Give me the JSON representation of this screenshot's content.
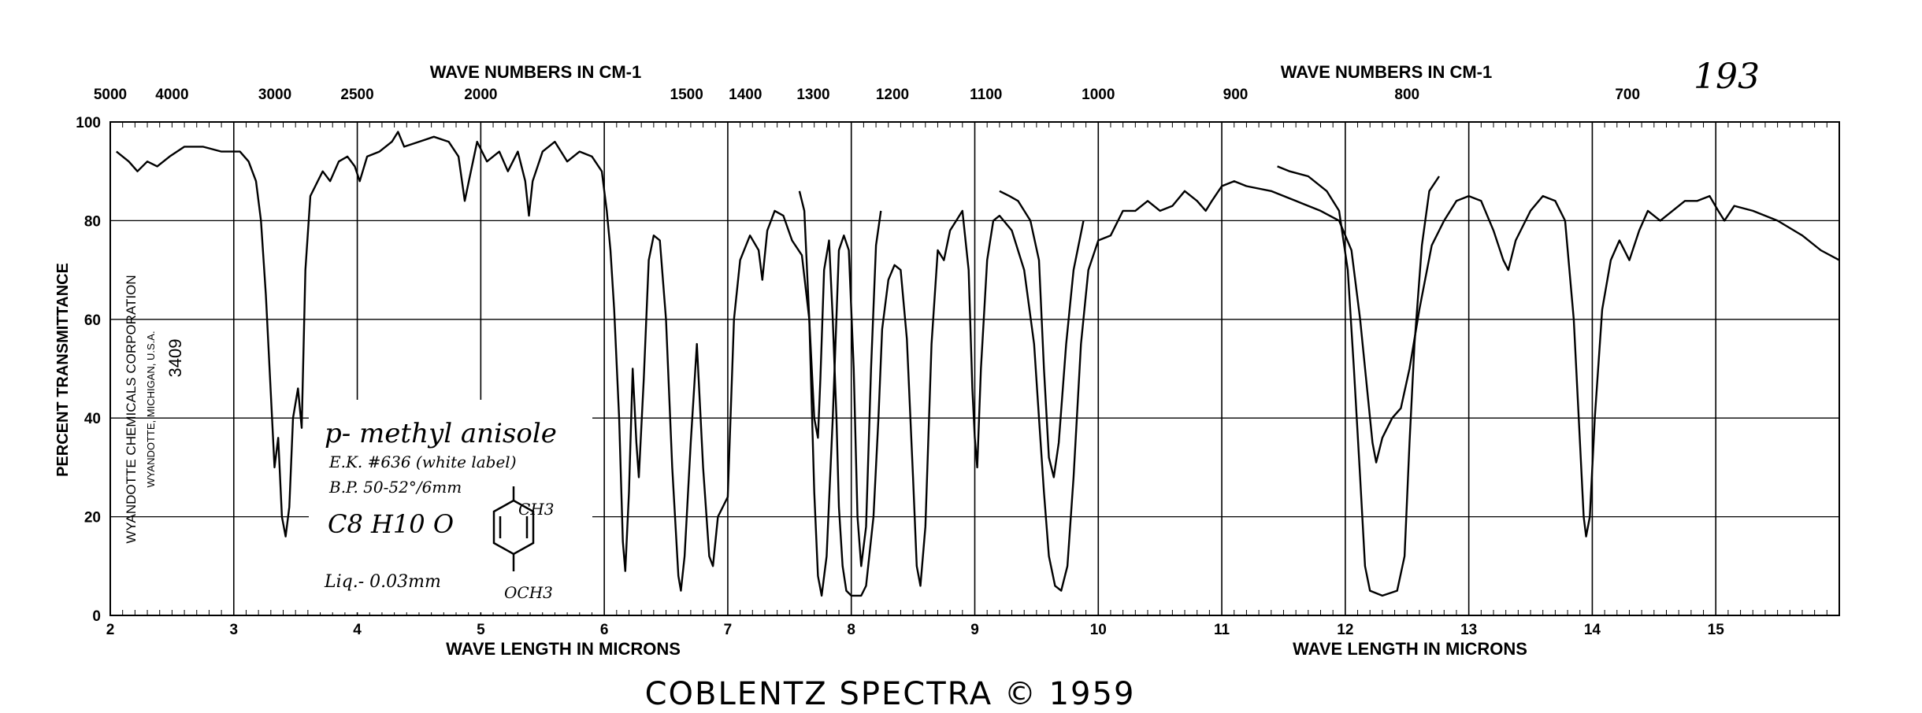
{
  "page_number": "193",
  "caption": "COBLENTZ SPECTRA © 1959",
  "side_labels": {
    "company": "WYANDOTTE CHEMICALS CORPORATION",
    "location": "WYANDOTTE, MICHIGAN, U.S.A.",
    "number": "3409"
  },
  "sample": {
    "name": "p- methyl anisole",
    "ek": "E.K. #636 (white label)",
    "bp": "B.P. 50-52°/6mm",
    "formula": "C8 H10 O",
    "cell": "Liq.- 0.03mm",
    "structure_top": "CH3",
    "structure_bottom": "OCH3"
  },
  "chart_data": {
    "type": "line",
    "xlabel": "WAVE LENGTH IN MICRONS",
    "xlabel_right": "WAVE LENGTH IN MICRONS",
    "ylabel": "PERCENT TRANSMITTANCE",
    "top_label_left": "WAVE NUMBERS IN CM-1",
    "top_label_right": "WAVE NUMBERS IN CM-1",
    "xlim": [
      2,
      16
    ],
    "ylim": [
      0,
      100
    ],
    "x_ticks": [
      2,
      3,
      4,
      5,
      6,
      7,
      8,
      9,
      10,
      11,
      12,
      13,
      14,
      15
    ],
    "y_ticks": [
      0,
      20,
      40,
      60,
      80,
      100
    ],
    "top_ticks": [
      "5000",
      "4000",
      "3000",
      "2500",
      "2000",
      "1500",
      "1400",
      "1300",
      "1200",
      "1100",
      "1000",
      "900",
      "800",
      "700"
    ],
    "grid": true,
    "series": [
      {
        "points": [
          [
            2.05,
            94
          ],
          [
            2.15,
            92
          ],
          [
            2.22,
            90
          ],
          [
            2.3,
            92
          ],
          [
            2.38,
            91
          ],
          [
            2.48,
            93
          ],
          [
            2.6,
            95
          ],
          [
            2.75,
            95
          ],
          [
            2.9,
            94
          ],
          [
            3.05,
            94
          ],
          [
            3.12,
            92
          ],
          [
            3.18,
            88
          ],
          [
            3.22,
            80
          ],
          [
            3.26,
            65
          ],
          [
            3.3,
            45
          ],
          [
            3.33,
            30
          ],
          [
            3.36,
            36
          ],
          [
            3.39,
            20
          ],
          [
            3.42,
            16
          ],
          [
            3.45,
            22
          ],
          [
            3.48,
            40
          ],
          [
            3.52,
            46
          ],
          [
            3.55,
            38
          ],
          [
            3.58,
            70
          ],
          [
            3.62,
            85
          ],
          [
            3.68,
            88
          ],
          [
            3.72,
            90
          ],
          [
            3.78,
            88
          ],
          [
            3.85,
            92
          ],
          [
            3.92,
            93
          ],
          [
            3.98,
            91
          ],
          [
            4.02,
            88
          ],
          [
            4.08,
            93
          ],
          [
            4.18,
            94
          ],
          [
            4.28,
            96
          ],
          [
            4.33,
            98
          ],
          [
            4.38,
            95
          ],
          [
            4.5,
            96
          ],
          [
            4.62,
            97
          ],
          [
            4.74,
            96
          ],
          [
            4.82,
            93
          ],
          [
            4.87,
            84
          ],
          [
            4.92,
            90
          ],
          [
            4.97,
            96
          ],
          [
            5.05,
            92
          ],
          [
            5.15,
            94
          ],
          [
            5.22,
            90
          ],
          [
            5.3,
            94
          ],
          [
            5.36,
            88
          ],
          [
            5.39,
            81
          ],
          [
            5.42,
            88
          ],
          [
            5.5,
            94
          ],
          [
            5.6,
            96
          ],
          [
            5.7,
            92
          ],
          [
            5.8,
            94
          ],
          [
            5.9,
            93
          ],
          [
            5.98,
            90
          ],
          [
            6.02,
            82
          ],
          [
            6.05,
            74
          ],
          [
            6.08,
            62
          ],
          [
            6.12,
            40
          ],
          [
            6.15,
            15
          ],
          [
            6.17,
            9
          ],
          [
            6.2,
            25
          ],
          [
            6.23,
            50
          ],
          [
            6.26,
            35
          ],
          [
            6.28,
            28
          ],
          [
            6.32,
            48
          ],
          [
            6.36,
            72
          ],
          [
            6.4,
            77
          ],
          [
            6.45,
            76
          ],
          [
            6.5,
            60
          ],
          [
            6.55,
            30
          ],
          [
            6.6,
            8
          ],
          [
            6.62,
            5
          ],
          [
            6.65,
            12
          ],
          [
            6.7,
            35
          ],
          [
            6.75,
            55
          ],
          [
            6.8,
            30
          ],
          [
            6.85,
            12
          ],
          [
            6.88,
            10
          ],
          [
            6.92,
            20
          ],
          [
            7.0,
            24
          ],
          [
            7.05,
            60
          ],
          [
            7.1,
            72
          ],
          [
            7.18,
            77
          ],
          [
            7.25,
            74
          ],
          [
            7.28,
            68
          ],
          [
            7.32,
            78
          ],
          [
            7.38,
            82
          ],
          [
            7.45,
            81
          ],
          [
            7.52,
            76
          ],
          [
            7.6,
            73
          ],
          [
            7.66,
            60
          ],
          [
            7.7,
            40
          ],
          [
            7.73,
            36
          ],
          [
            7.75,
            48
          ],
          [
            7.78,
            70
          ],
          [
            7.82,
            76
          ],
          [
            7.85,
            60
          ],
          [
            7.88,
            40
          ],
          [
            7.9,
            22
          ],
          [
            7.93,
            10
          ],
          [
            7.96,
            5
          ],
          [
            8.0,
            4
          ],
          [
            8.08,
            4
          ],
          [
            8.12,
            6
          ],
          [
            8.18,
            20
          ],
          [
            8.22,
            40
          ],
          [
            8.25,
            58
          ],
          [
            8.3,
            68
          ],
          [
            8.35,
            71
          ],
          [
            8.4,
            70
          ],
          [
            8.45,
            56
          ],
          [
            8.5,
            28
          ],
          [
            8.53,
            10
          ],
          [
            8.56,
            6
          ],
          [
            8.6,
            18
          ],
          [
            8.65,
            55
          ],
          [
            8.7,
            74
          ],
          [
            8.75,
            72
          ],
          [
            8.8,
            78
          ],
          [
            8.85,
            80
          ],
          [
            8.9,
            82
          ],
          [
            8.95,
            70
          ],
          [
            8.98,
            46
          ],
          [
            9.0,
            36
          ],
          [
            9.02,
            30
          ],
          [
            9.05,
            50
          ],
          [
            9.1,
            72
          ],
          [
            9.15,
            80
          ],
          [
            9.2,
            81
          ],
          [
            9.3,
            78
          ],
          [
            9.4,
            70
          ],
          [
            9.48,
            55
          ],
          [
            9.52,
            40
          ],
          [
            9.56,
            25
          ],
          [
            9.6,
            12
          ],
          [
            9.65,
            6
          ],
          [
            9.7,
            5
          ],
          [
            9.75,
            10
          ],
          [
            9.8,
            28
          ],
          [
            9.86,
            55
          ],
          [
            9.92,
            70
          ],
          [
            10.0,
            76
          ],
          [
            10.1,
            77
          ],
          [
            10.2,
            82
          ],
          [
            10.3,
            82
          ],
          [
            10.4,
            84
          ],
          [
            10.5,
            82
          ],
          [
            10.6,
            83
          ],
          [
            10.7,
            86
          ],
          [
            10.8,
            84
          ],
          [
            10.87,
            82
          ],
          [
            10.92,
            84
          ],
          [
            11.0,
            87
          ],
          [
            11.1,
            88
          ],
          [
            11.2,
            87
          ],
          [
            11.4,
            86
          ],
          [
            11.6,
            84
          ],
          [
            11.8,
            82
          ],
          [
            11.95,
            80
          ],
          [
            12.05,
            74
          ],
          [
            12.12,
            60
          ],
          [
            12.18,
            45
          ],
          [
            12.22,
            35
          ],
          [
            12.25,
            31
          ],
          [
            12.3,
            36
          ],
          [
            12.38,
            40
          ],
          [
            12.45,
            42
          ],
          [
            12.52,
            50
          ],
          [
            12.6,
            62
          ],
          [
            12.7,
            75
          ],
          [
            12.8,
            80
          ],
          [
            12.9,
            84
          ],
          [
            13.0,
            85
          ],
          [
            13.1,
            84
          ],
          [
            13.2,
            78
          ],
          [
            13.28,
            72
          ],
          [
            13.32,
            70
          ],
          [
            13.38,
            76
          ],
          [
            13.5,
            82
          ],
          [
            13.6,
            85
          ],
          [
            13.7,
            84
          ],
          [
            13.78,
            80
          ],
          [
            13.85,
            60
          ],
          [
            13.9,
            35
          ],
          [
            13.93,
            20
          ],
          [
            13.95,
            16
          ],
          [
            13.98,
            20
          ],
          [
            14.02,
            40
          ],
          [
            14.08,
            62
          ],
          [
            14.15,
            72
          ],
          [
            14.22,
            76
          ],
          [
            14.3,
            72
          ],
          [
            14.38,
            78
          ],
          [
            14.45,
            82
          ],
          [
            14.55,
            80
          ],
          [
            14.65,
            82
          ],
          [
            14.75,
            84
          ],
          [
            14.85,
            84
          ],
          [
            14.95,
            85
          ],
          [
            15.02,
            82
          ],
          [
            15.07,
            80
          ],
          [
            15.15,
            83
          ],
          [
            15.3,
            82
          ],
          [
            15.5,
            80
          ],
          [
            15.7,
            77
          ],
          [
            15.85,
            74
          ],
          [
            16.0,
            72
          ]
        ]
      },
      {
        "points": [
          [
            7.58,
            86
          ],
          [
            7.62,
            82
          ],
          [
            7.66,
            60
          ],
          [
            7.7,
            25
          ],
          [
            7.73,
            8
          ],
          [
            7.76,
            4
          ],
          [
            7.8,
            12
          ],
          [
            7.85,
            40
          ],
          [
            7.9,
            74
          ],
          [
            7.94,
            77
          ],
          [
            7.98,
            74
          ],
          [
            8.02,
            50
          ],
          [
            8.05,
            20
          ],
          [
            8.08,
            10
          ],
          [
            8.12,
            18
          ],
          [
            8.16,
            50
          ],
          [
            8.2,
            75
          ],
          [
            8.24,
            82
          ]
        ]
      },
      {
        "points": [
          [
            9.2,
            86
          ],
          [
            9.28,
            85
          ],
          [
            9.35,
            84
          ],
          [
            9.45,
            80
          ],
          [
            9.52,
            72
          ],
          [
            9.56,
            50
          ],
          [
            9.6,
            32
          ],
          [
            9.64,
            28
          ],
          [
            9.68,
            35
          ],
          [
            9.74,
            55
          ],
          [
            9.8,
            70
          ],
          [
            9.88,
            80
          ]
        ]
      },
      {
        "points": [
          [
            11.45,
            91
          ],
          [
            11.55,
            90
          ],
          [
            11.7,
            89
          ],
          [
            11.85,
            86
          ],
          [
            11.95,
            82
          ],
          [
            12.02,
            70
          ],
          [
            12.07,
            50
          ],
          [
            12.12,
            28
          ],
          [
            12.16,
            10
          ],
          [
            12.2,
            5
          ],
          [
            12.3,
            4
          ],
          [
            12.42,
            5
          ],
          [
            12.48,
            12
          ],
          [
            12.52,
            35
          ],
          [
            12.56,
            55
          ],
          [
            12.62,
            75
          ],
          [
            12.68,
            86
          ],
          [
            12.76,
            89
          ]
        ]
      }
    ]
  }
}
